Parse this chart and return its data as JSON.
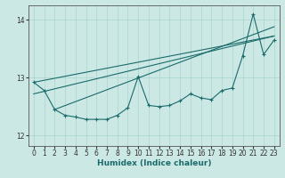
{
  "xlabel": "Humidex (Indice chaleur)",
  "bg_color": "#cce8e4",
  "line_color": "#1a6b6b",
  "grid_color": "#aad4cf",
  "xlim": [
    -0.5,
    23.5
  ],
  "ylim": [
    11.82,
    14.25
  ],
  "yticks": [
    12,
    13,
    14
  ],
  "xticks": [
    0,
    1,
    2,
    3,
    4,
    5,
    6,
    7,
    8,
    9,
    10,
    11,
    12,
    13,
    14,
    15,
    16,
    17,
    18,
    19,
    20,
    21,
    22,
    23
  ],
  "main_data_x": [
    0,
    1,
    2,
    3,
    4,
    5,
    6,
    7,
    8,
    9,
    10,
    11,
    12,
    13,
    14,
    15,
    16,
    17,
    18,
    19,
    20,
    21,
    22,
    23
  ],
  "main_data_y": [
    12.92,
    12.78,
    12.45,
    12.35,
    12.32,
    12.28,
    12.28,
    12.28,
    12.35,
    12.48,
    13.02,
    12.52,
    12.5,
    12.52,
    12.6,
    12.72,
    12.65,
    12.62,
    12.78,
    12.82,
    13.38,
    14.1,
    13.4,
    13.65
  ],
  "trend_lines": [
    {
      "x0": 0,
      "y0": 12.92,
      "x1": 23,
      "y1": 13.72
    },
    {
      "x0": 0,
      "y0": 12.72,
      "x1": 23,
      "y1": 13.72
    },
    {
      "x0": 2,
      "y0": 12.45,
      "x1": 23,
      "y1": 13.88
    }
  ]
}
